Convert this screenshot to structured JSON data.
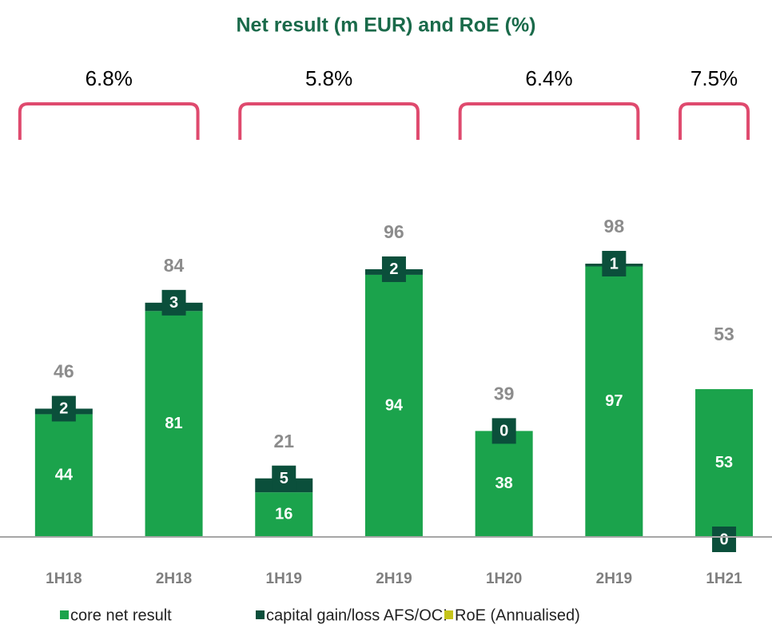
{
  "chart_data": {
    "type": "bar",
    "stacked": true,
    "title": "Net result (m EUR) and RoE (%)",
    "categories": [
      "1H18",
      "2H18",
      "1H19",
      "2H19",
      "1H20",
      "2H19",
      "1H21"
    ],
    "series": [
      {
        "name": "core net result",
        "color": "#1ba34c",
        "values": [
          44,
          81,
          16,
          94,
          38,
          97,
          53
        ]
      },
      {
        "name": "capital gain/loss AFS/OCI",
        "color": "#0b4f3b",
        "values": [
          2,
          3,
          5,
          2,
          0,
          1,
          0
        ]
      }
    ],
    "totals": [
      46,
      84,
      21,
      96,
      39,
      98,
      53
    ],
    "roe": {
      "name": "RoE (Annualised)",
      "color": "#c5c41a",
      "values": [
        6.8,
        5.8,
        6.4,
        7.5
      ],
      "value_labels": [
        "6.8%",
        "5.8%",
        "6.4%",
        "7.5%"
      ],
      "bracket_color": "#df4a6e"
    },
    "ylim": [
      0,
      100
    ]
  }
}
